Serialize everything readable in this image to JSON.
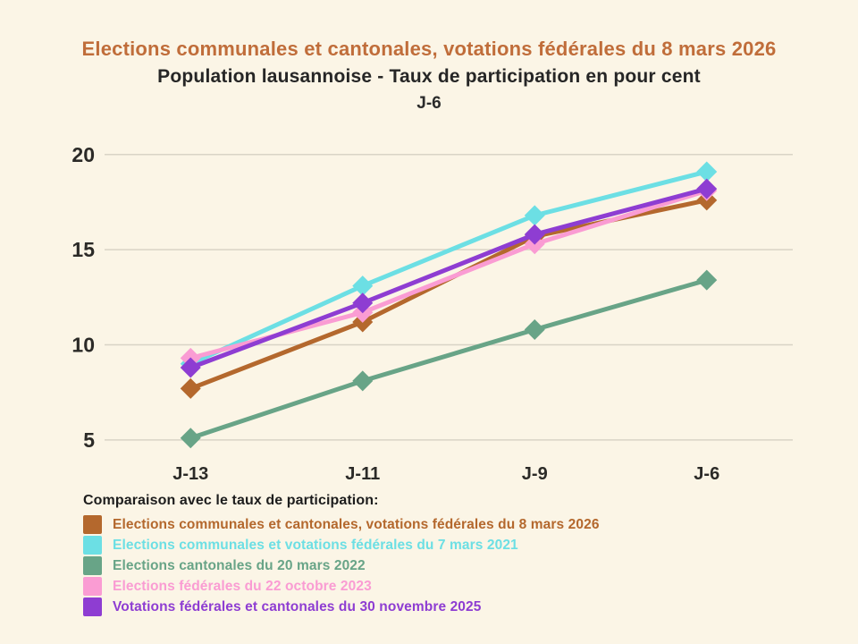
{
  "header": {
    "title": "Elections communales et cantonales, votations fédérales du 8 mars 2026",
    "subtitle": "Population lausannoise - Taux de participation en pour cent",
    "period_label": "J-6"
  },
  "colors": {
    "background": "#fbf5e6",
    "title_accent": "#c06d3a",
    "subtitle_text": "#262626",
    "axis_text": "#2b2a27",
    "gridline": "#d9d4c6",
    "legend_title_text": "#1d1d1d"
  },
  "legend": {
    "title": "Comparaison avec le taux de participation:",
    "items": [
      {
        "label": "Elections communales et cantonales, votations fédérales du 8 mars 2026",
        "color": "#b4682d"
      },
      {
        "label": "Elections communales et votations fédérales du 7 mars 2021",
        "color": "#6cdfe4"
      },
      {
        "label": "Elections cantonales du 20 mars 2022",
        "color": "#68a487"
      },
      {
        "label": "Elections fédérales du 22 octobre 2023",
        "color": "#fa9cd3"
      },
      {
        "label": "Votations fédérales et cantonales du 30 novembre 2025",
        "color": "#8e3dd2"
      }
    ]
  },
  "chart_data": {
    "type": "line",
    "title": "Elections communales et cantonales, votations fédérales du 8 mars 2026",
    "subtitle": "Population lausannoise - Taux de participation en pour cent",
    "xlabel": "",
    "ylabel": "Taux de participation en pour cent",
    "categories": [
      "J-13",
      "J-11",
      "J-9",
      "J-6"
    ],
    "y_ticks": [
      20,
      15,
      10,
      5
    ],
    "ylim": [
      4,
      21.5
    ],
    "grid": "horizontal",
    "grid_color": "#d9d4c6",
    "marker": "diamond",
    "legend_position": "bottom",
    "series": [
      {
        "name": "Elections communales et cantonales, votations fédérales du 8 mars 2026",
        "color": "#b4682d",
        "values": [
          7.7,
          11.2,
          15.7,
          17.6
        ]
      },
      {
        "name": "Elections communales et votations fédérales du 7 mars 2021",
        "color": "#6cdfe4",
        "values": [
          9.0,
          13.1,
          16.8,
          19.1
        ]
      },
      {
        "name": "Elections cantonales du 20 mars 2022",
        "color": "#68a487",
        "values": [
          5.1,
          8.1,
          10.8,
          13.4
        ]
      },
      {
        "name": "Elections fédérales du 22 octobre 2023",
        "color": "#fa9cd3",
        "values": [
          9.3,
          11.7,
          15.3,
          18.1
        ]
      },
      {
        "name": "Votations fédérales et cantonales du 30 novembre 2025",
        "color": "#8e3dd2",
        "values": [
          8.8,
          12.2,
          15.8,
          18.2
        ]
      }
    ]
  }
}
